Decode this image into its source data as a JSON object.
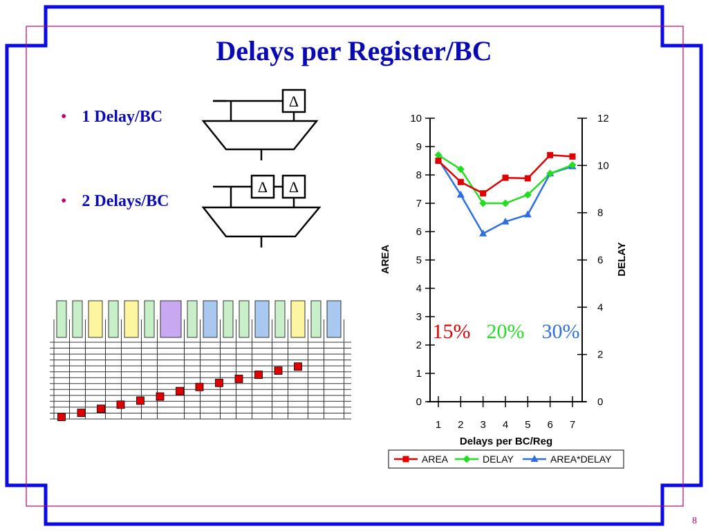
{
  "slide": {
    "title": "Delays per Register/BC",
    "page_number": "8",
    "bullets": [
      "1 Delay/BC",
      "2 Delays/BC"
    ],
    "delta_symbol": "Δ",
    "colors": {
      "frame": "#0a0ae6",
      "inner_frame": "#c0006a",
      "title": "#0a0ab4"
    }
  },
  "chart_data": {
    "type": "line",
    "xlabel": "Delays per BC/Reg",
    "ylabel_left": "AREA",
    "ylabel_right": "DELAY",
    "x": [
      1,
      2,
      3,
      4,
      5,
      6,
      7
    ],
    "ylim_left": [
      0,
      10
    ],
    "ylim_right": [
      0,
      12
    ],
    "left_ticks": [
      "0",
      "1",
      "2",
      "3",
      "4",
      "5",
      "6",
      "7",
      "8",
      "9",
      "10"
    ],
    "right_ticks": [
      "0",
      "2",
      "4",
      "6",
      "8",
      "10",
      "12"
    ],
    "legend_position": "bottom",
    "series": [
      {
        "name": "AREA",
        "axis": "left",
        "color": "#e00000",
        "marker": "square",
        "values": [
          8.5,
          7.75,
          7.35,
          7.9,
          7.88,
          8.7,
          8.65
        ]
      },
      {
        "name": "DELAY",
        "axis": "left",
        "color": "#22dd22",
        "marker": "diamond",
        "values": [
          8.7,
          8.2,
          7.0,
          7.0,
          7.3,
          8.05,
          8.35
        ]
      },
      {
        "name": "AREA*DELAY",
        "axis": "left",
        "color": "#2e6fe0",
        "marker": "triangle",
        "values": [
          8.55,
          7.3,
          5.93,
          6.35,
          6.6,
          8.05,
          8.3
        ]
      }
    ],
    "annotations": [
      {
        "text": "15%",
        "color": "#e00000"
      },
      {
        "text": "20%",
        "color": "#22dd22"
      },
      {
        "text": "30%",
        "color": "#2e6fe0"
      }
    ]
  },
  "register_diagram": {
    "cells": [
      {
        "color": "#c8f0c8"
      },
      {
        "color": "#c8f0c8"
      },
      {
        "color": "#fdf5a0"
      },
      {
        "color": "#c8f0c8"
      },
      {
        "color": "#fdf5a0"
      },
      {
        "color": "#c8f0c8"
      },
      {
        "color": "#c8a8f0"
      },
      {
        "color": "#c8f0c8"
      },
      {
        "color": "#a8c8f0"
      },
      {
        "color": "#c8f0c8"
      },
      {
        "color": "#c8f0c8"
      },
      {
        "color": "#a8c8f0"
      },
      {
        "color": "#c8f0c8"
      },
      {
        "color": "#fdf5a0"
      },
      {
        "color": "#c8f0c8"
      },
      {
        "color": "#a8c8f0"
      }
    ],
    "red_markers": 13
  }
}
